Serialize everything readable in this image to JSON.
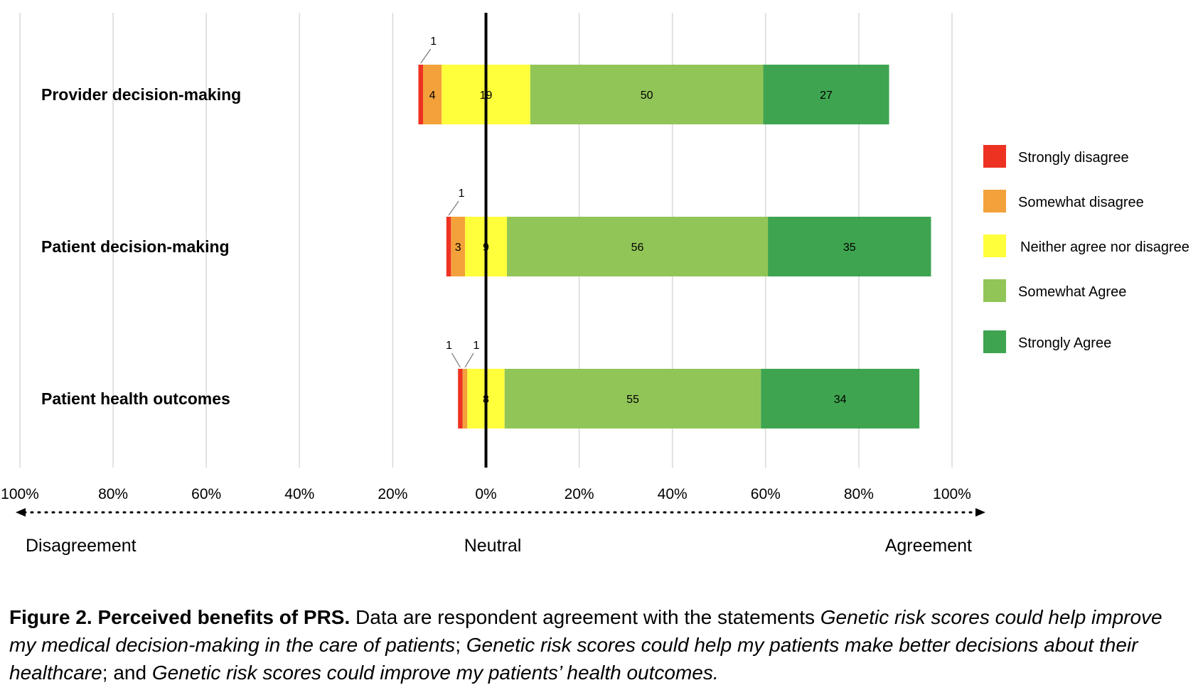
{
  "chart_data": {
    "type": "bar",
    "subtype": "diverging-stacked-horizontal",
    "categories": [
      "Provider decision-making",
      "Patient decision-making",
      "Patient health outcomes"
    ],
    "series": [
      {
        "name": "Strongly disagree",
        "color": "#ee3222",
        "values": [
          1,
          1,
          1
        ]
      },
      {
        "name": "Somewhat disagree",
        "color": "#f3a13b",
        "values": [
          4,
          3,
          1
        ]
      },
      {
        "name": "Neither agree nor disagree",
        "color": "#ffff3c",
        "values": [
          19,
          9,
          8
        ]
      },
      {
        "name": "Somewhat Agree",
        "color": "#92c558",
        "values": [
          50,
          56,
          55
        ]
      },
      {
        "name": "Strongly Agree",
        "color": "#3ea450",
        "values": [
          27,
          35,
          34
        ]
      }
    ],
    "x_ticks": [
      "100%",
      "80%",
      "60%",
      "40%",
      "20%",
      "0%",
      "20%",
      "40%",
      "60%",
      "80%",
      "100%"
    ],
    "xlim": [
      -100,
      100
    ],
    "grid": true,
    "legend_position": "right",
    "axis_labels": {
      "left": "Disagreement",
      "center": "Neutral",
      "right": "Agreement"
    }
  },
  "caption": {
    "bold": "Figure 2. Perceived benefits of PRS.",
    "text1": " Data are respondent agreement with the statements ",
    "italic1": "Genetic risk scores could help improve my medical decision-making in the care of patients",
    "text2": "; ",
    "italic2": "Genetic risk scores could help my patients make better decisions about their healthcare",
    "text3": "; and ",
    "italic3": "Genetic risk scores could improve my patients’ health outcomes."
  }
}
